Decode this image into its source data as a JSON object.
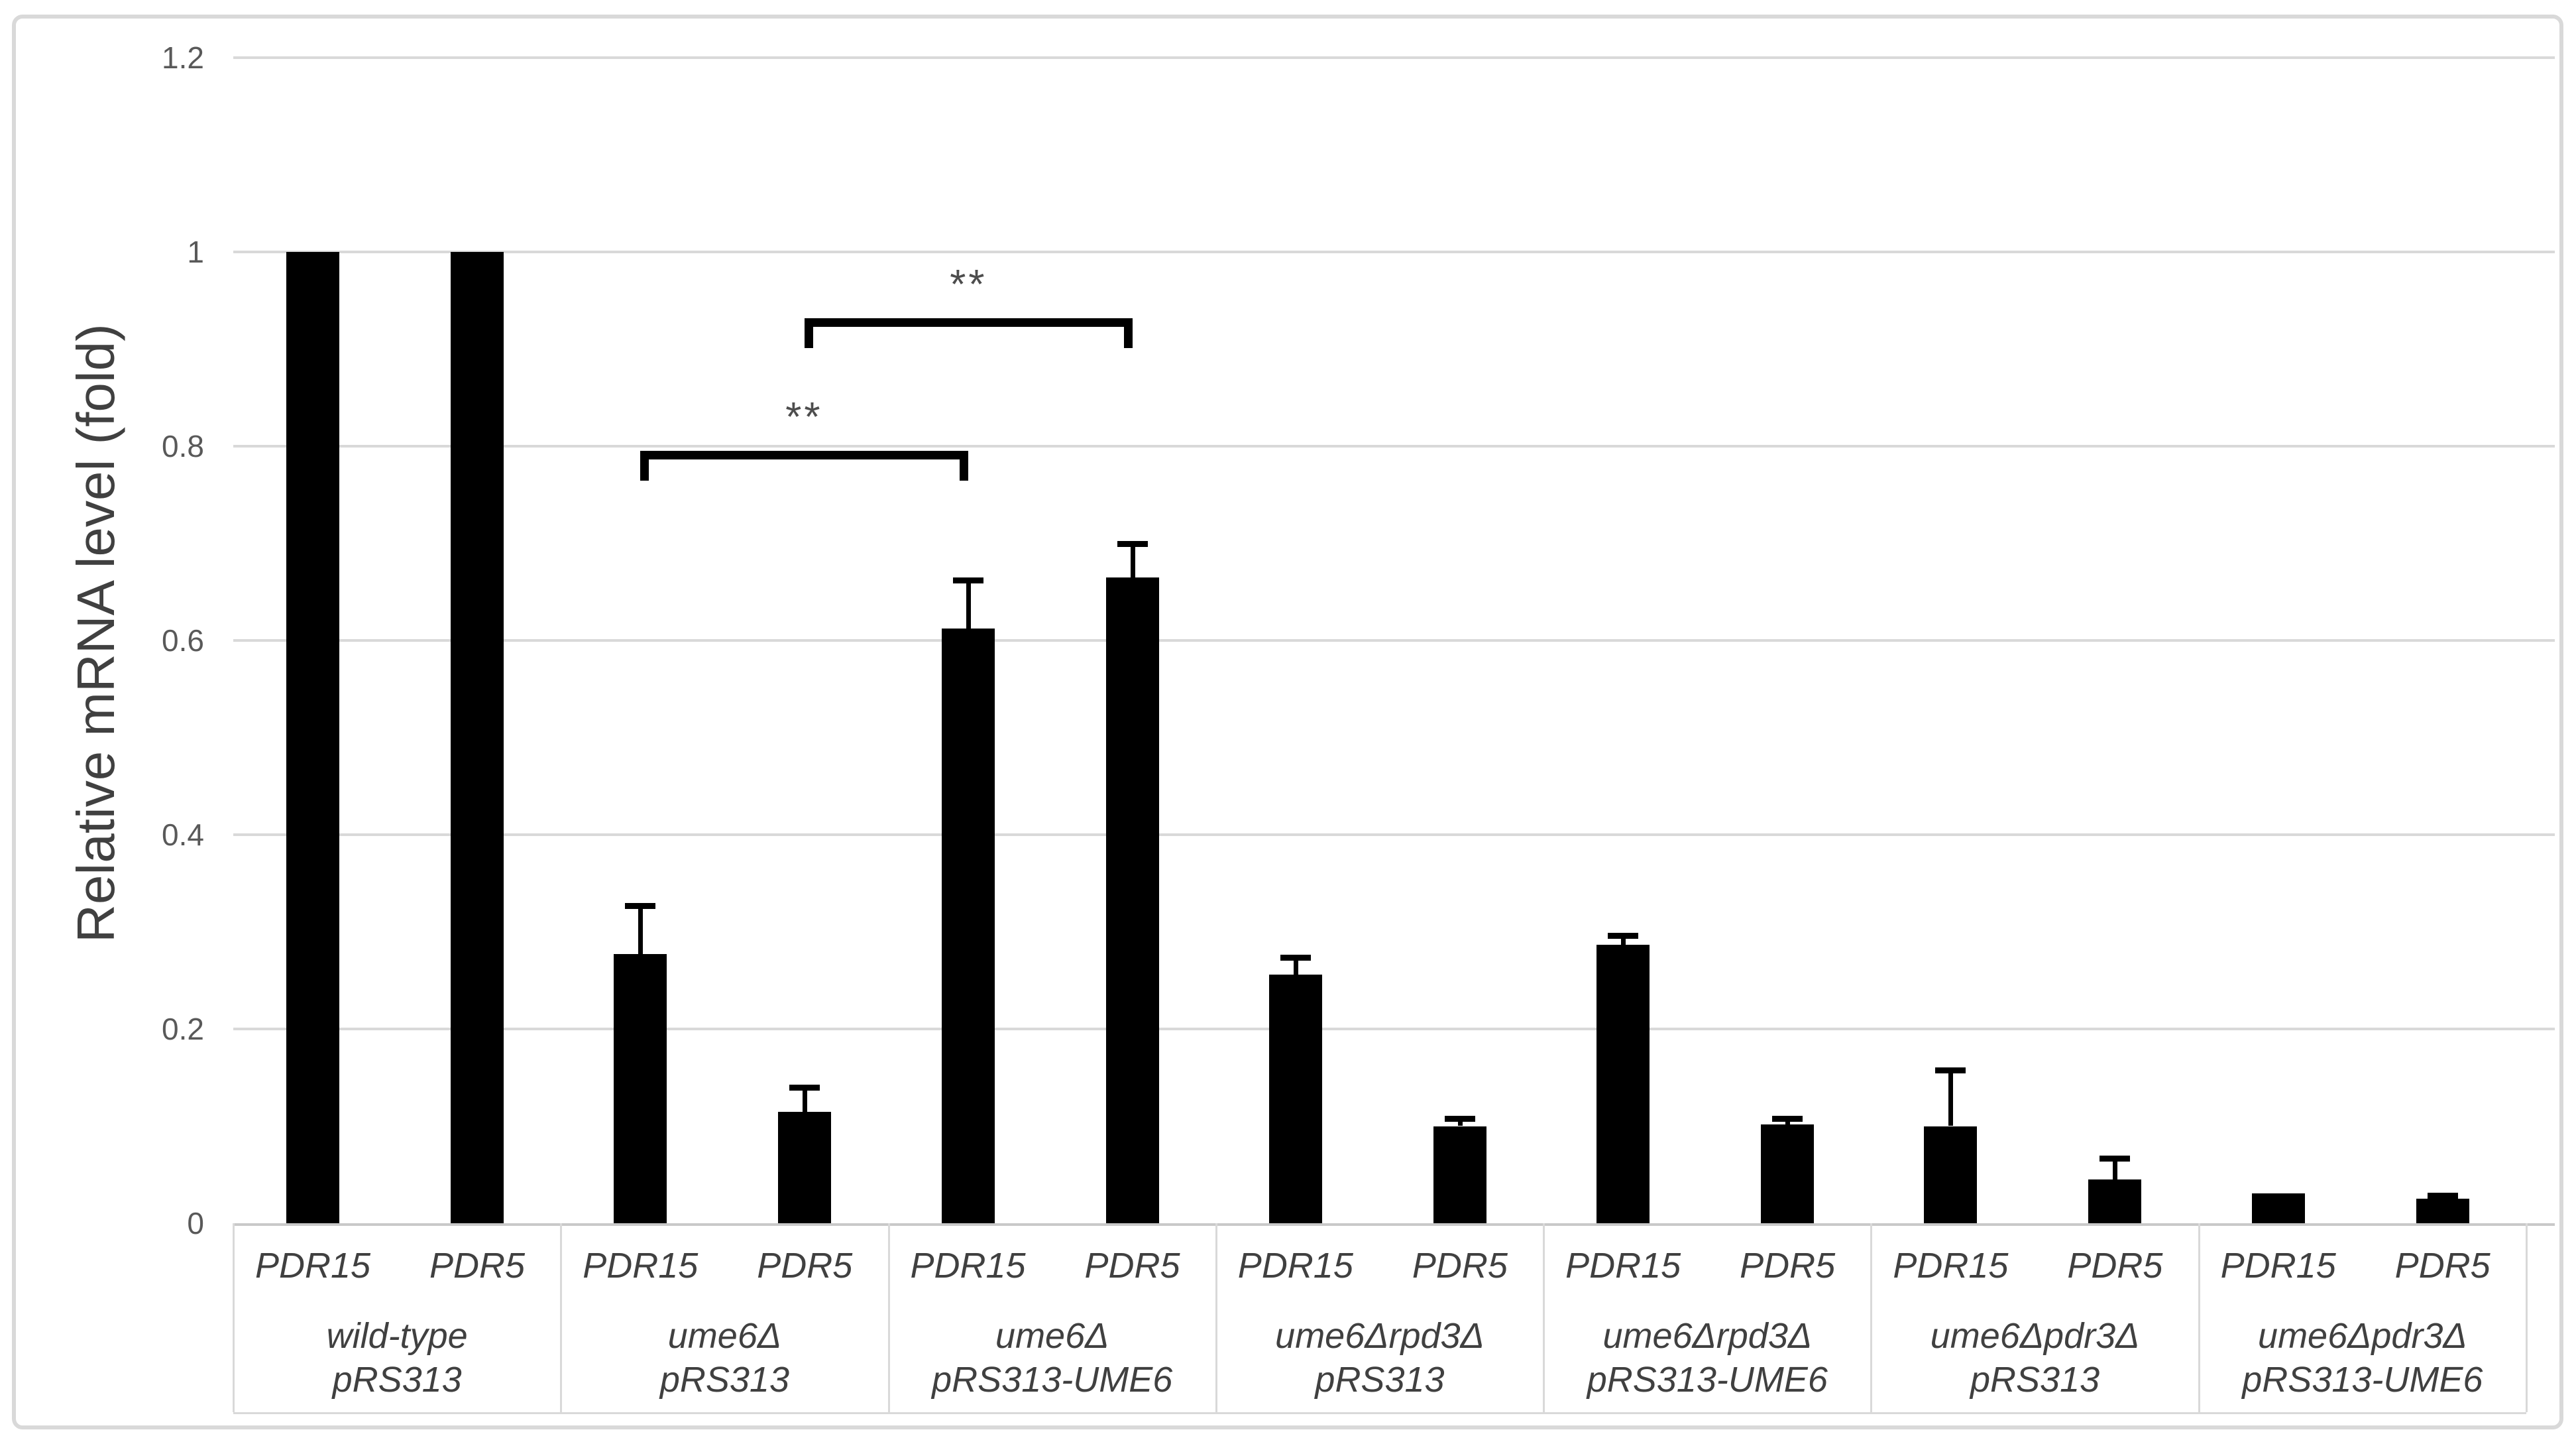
{
  "y_axis": {
    "title": "Relative mRNA level (fold)",
    "tick_labels": [
      "0",
      "0.2",
      "0.4",
      "0.6",
      "0.8",
      "1",
      "1.2"
    ]
  },
  "chart_data": {
    "type": "bar",
    "title": "",
    "xlabel": "",
    "ylabel": "Relative mRNA level (fold)",
    "ylim": [
      0,
      1.2
    ],
    "yticks": [
      0,
      0.2,
      0.4,
      0.6,
      0.8,
      1,
      1.2
    ],
    "grid": true,
    "legend_position": "none",
    "bar_color": "#000000",
    "categories": [
      "wild-type pRS313",
      "ume6Δ pRS313",
      "ume6Δ pRS313-UME6",
      "ume6Δrpd3Δ pRS313",
      "ume6Δrpd3Δ pRS313-UME6",
      "ume6Δpdr3Δ pRS313",
      "ume6Δpdr3Δ pRS313-UME6"
    ],
    "group_labels": [
      {
        "strain": "wild-type",
        "plasmid": "pRS313"
      },
      {
        "strain": "ume6Δ",
        "plasmid": "pRS313"
      },
      {
        "strain": "ume6Δ",
        "plasmid": "pRS313-UME6"
      },
      {
        "strain": "ume6Δrpd3Δ",
        "plasmid": "pRS313"
      },
      {
        "strain": "ume6Δrpd3Δ",
        "plasmid": "pRS313-UME6"
      },
      {
        "strain": "ume6Δpdr3Δ",
        "plasmid": "pRS313"
      },
      {
        "strain": "ume6Δpdr3Δ",
        "plasmid": "pRS313-UME6"
      }
    ],
    "series": [
      {
        "name": "PDR15",
        "values": [
          1.0,
          0.277,
          0.612,
          0.256,
          0.287,
          0.1,
          0.031
        ],
        "errors_plus": [
          0,
          0.05,
          0.05,
          0.018,
          0.009,
          0.058,
          0
        ]
      },
      {
        "name": "PDR5",
        "values": [
          1.0,
          0.115,
          0.665,
          0.1,
          0.102,
          0.045,
          0.025
        ],
        "errors_plus": [
          0,
          0.025,
          0.035,
          0.008,
          0.006,
          0.022,
          0.004
        ]
      }
    ],
    "significance_brackets": [
      {
        "label": "**",
        "series": "PDR15",
        "from_group": 1,
        "to_group": 2,
        "height": 0.795
      },
      {
        "label": "**",
        "series": "PDR5",
        "from_group": 1,
        "to_group": 2,
        "height": 0.932
      }
    ]
  },
  "colors": {
    "bar": "#000000",
    "label_text": "#404040",
    "tick_text": "#595959",
    "grid": "#d9d9d9",
    "axis_line": "#c9c9c9",
    "figure_border": "#d9d9d9",
    "bracket": "#000000"
  }
}
